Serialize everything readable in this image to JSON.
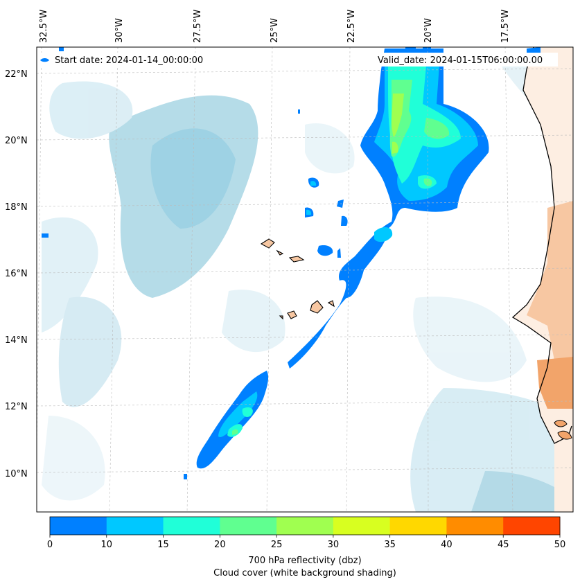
{
  "map": {
    "lon_labels": [
      "32.5°W",
      "30°W",
      "27.5°W",
      "25°W",
      "22.5°W",
      "20°W",
      "17.5°W"
    ],
    "lat_labels": [
      "22°N",
      "20°N",
      "18°N",
      "16°N",
      "14°N",
      "12°N",
      "10°N"
    ],
    "start_date": "Start date: 2024-01-14_00:00:00",
    "valid_date": "Valid_date: 2024-01-15T06:00:00.00"
  },
  "colorbar": {
    "ticks": [
      "0",
      "10",
      "15",
      "20",
      "25",
      "30",
      "35",
      "40",
      "45",
      "50"
    ],
    "colors": [
      "#0080ff",
      "#00c8ff",
      "#20ffd8",
      "#60ff90",
      "#a0ff50",
      "#d8ff20",
      "#ffd800",
      "#ff8c00",
      "#ff4500"
    ],
    "label_line1": "700 hPa reflectivity (dbz)",
    "label_line2": "Cloud cover (white background shading)"
  }
}
